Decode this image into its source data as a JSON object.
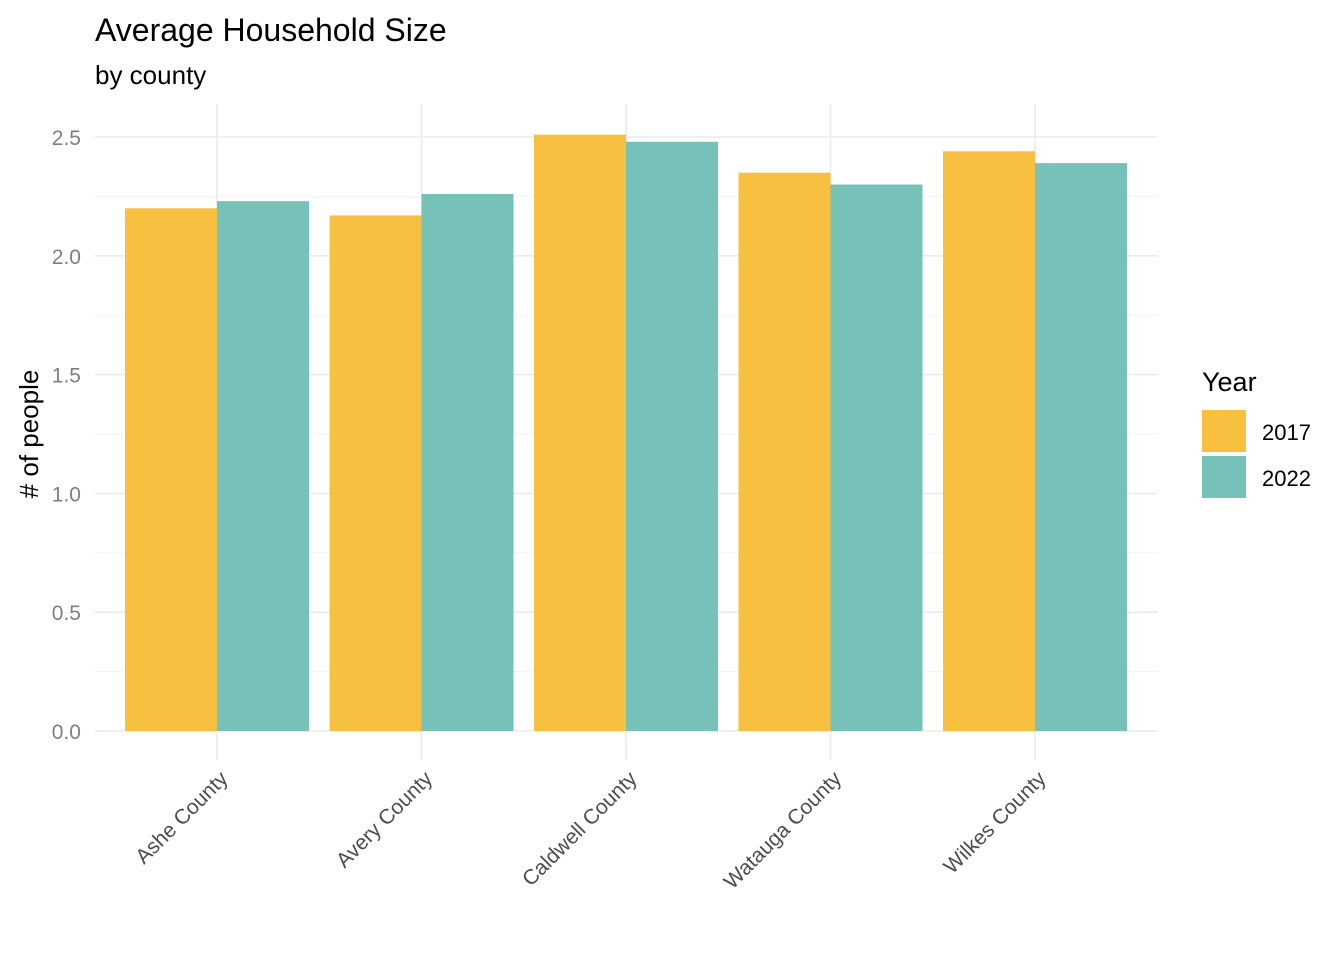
{
  "chart_data": {
    "type": "bar",
    "title": "Average Household Size",
    "subtitle": "by county",
    "xlabel": "",
    "ylabel": "# of people",
    "categories": [
      "Ashe County",
      "Avery County",
      "Caldwell County",
      "Watauga County",
      "Wilkes County"
    ],
    "series": [
      {
        "name": "2017",
        "color": "#F8C040",
        "values": [
          2.2,
          2.17,
          2.51,
          2.35,
          2.44
        ]
      },
      {
        "name": "2022",
        "color": "#76C1B8",
        "values": [
          2.23,
          2.26,
          2.48,
          2.3,
          2.39
        ]
      }
    ],
    "ylim": [
      0,
      2.5
    ],
    "yticks": [
      "0.0",
      "0.5",
      "1.0",
      "1.5",
      "2.0",
      "2.5"
    ],
    "legend": {
      "title": "Year",
      "position": "right"
    },
    "grid": true
  }
}
